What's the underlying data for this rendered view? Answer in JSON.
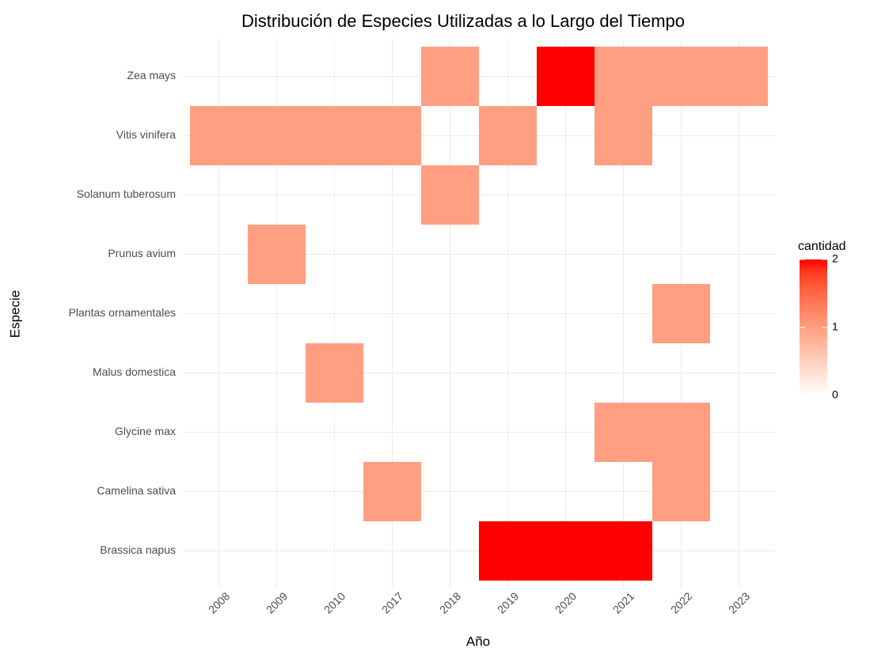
{
  "chart_data": {
    "type": "heatmap",
    "title": "Distribución de Especies Utilizadas a lo Largo del Tiempo",
    "x_label": "Año",
    "y_label": "Especie",
    "x_categories": [
      "2008",
      "2009",
      "2010",
      "2017",
      "2018",
      "2019",
      "2020",
      "2021",
      "2022",
      "2023"
    ],
    "y_categories": [
      "Brassica napus",
      "Camelina sativa",
      "Glycine max",
      "Malus domestica",
      "Plantas ornamentales",
      "Prunus avium",
      "Solanum tuberosum",
      "Vitis vinifera",
      "Zea mays"
    ],
    "values": [
      [
        null,
        null,
        null,
        null,
        null,
        2,
        2,
        2,
        null,
        null
      ],
      [
        null,
        null,
        null,
        1,
        null,
        null,
        null,
        null,
        1,
        null
      ],
      [
        null,
        null,
        null,
        null,
        null,
        null,
        null,
        1,
        1,
        null
      ],
      [
        null,
        null,
        1,
        null,
        null,
        null,
        null,
        null,
        null,
        null
      ],
      [
        null,
        null,
        null,
        null,
        null,
        null,
        null,
        null,
        1,
        null
      ],
      [
        null,
        1,
        null,
        null,
        null,
        null,
        null,
        null,
        null,
        null
      ],
      [
        null,
        null,
        null,
        null,
        1,
        null,
        null,
        null,
        null,
        null
      ],
      [
        1,
        1,
        1,
        1,
        null,
        1,
        null,
        1,
        null,
        null
      ],
      [
        null,
        null,
        null,
        null,
        1,
        null,
        2,
        1,
        1,
        1
      ]
    ],
    "colorbar": {
      "title": "cantidad",
      "lim": [
        0,
        2
      ],
      "ticks": [
        0,
        1,
        2
      ],
      "low_color": "#ffffff",
      "high_color": "#ff0000"
    },
    "grid": true
  }
}
